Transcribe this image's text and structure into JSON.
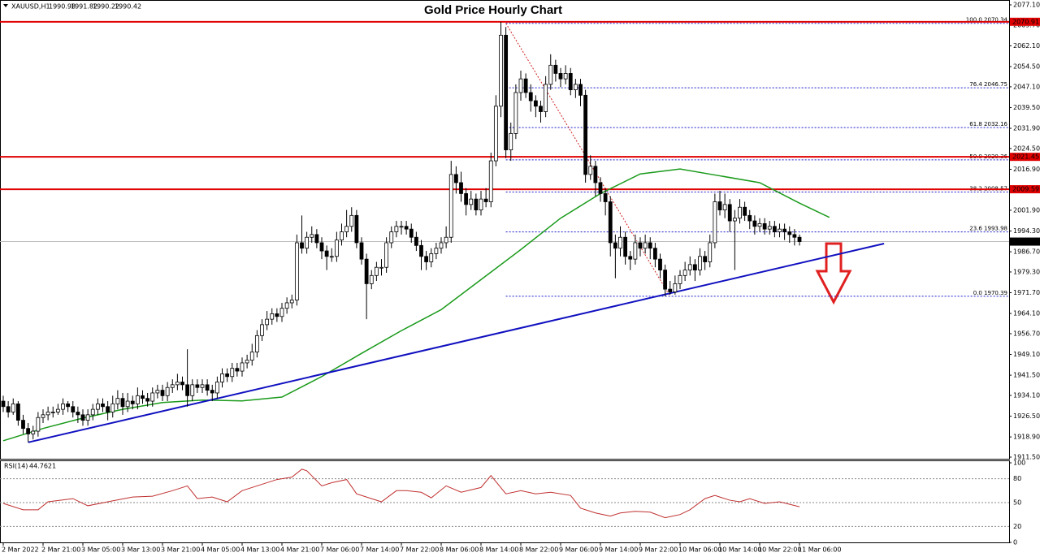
{
  "chart_data": [
    {
      "type": "candlestick",
      "title": "Gold Price Hourly Chart",
      "header": {
        "symbol": "XAUUSD,H1",
        "values": [
          1990.98,
          1991.82,
          1990.22,
          1990.42
        ]
      },
      "open": [
        1932,
        1930,
        1928,
        1931,
        1925,
        1922,
        1920,
        1921,
        1926,
        1927,
        1928,
        1928,
        1929,
        1931,
        1930,
        1928,
        1927,
        1925,
        1927,
        1929,
        1931,
        1930,
        1928,
        1931,
        1933,
        1930,
        1932,
        1931,
        1934,
        1933,
        1932,
        1935,
        1936,
        1934,
        1937,
        1938,
        1939,
        1938,
        1934,
        1938,
        1937,
        1938,
        1936,
        1935,
        1939,
        1942,
        1941,
        1944,
        1943,
        1946,
        1947,
        1950,
        1956,
        1960,
        1962,
        1964,
        1963,
        1966,
        1968,
        1969,
        1990,
        1988,
        1992,
        1993,
        1990,
        1987,
        1985,
        1985,
        1991,
        1994,
        1996,
        2000,
        1990,
        1984,
        1975,
        1978,
        1981,
        1981,
        1990,
        1994,
        1996,
        1996,
        1995,
        1992,
        1989,
        1985,
        1983,
        1986,
        1988,
        1990,
        1992,
        2015,
        2012,
        2008,
        2004,
        2006,
        2002,
        2006,
        2005,
        2020,
        2040,
        2066,
        2024,
        2030,
        2045,
        2050,
        2045,
        2042,
        2040,
        2038,
        2048,
        2055,
        2052,
        2050,
        2052,
        2046,
        2048,
        2044,
        2015,
        2018,
        2012,
        2008,
        2005,
        1990,
        1988,
        1992,
        1985,
        1984,
        1990,
        1988,
        1990,
        1988,
        1984,
        1980,
        1973,
        1972,
        1975,
        1978,
        1980,
        1982,
        1980,
        1985,
        1983,
        1990,
        2005,
        2002,
        2004,
        1998,
        1999,
        2003,
        2000,
        1998,
        1996,
        1997,
        1995,
        1996,
        1994,
        1995,
        1994,
        1993,
        1992
      ],
      "high": [
        1934,
        1932,
        1933,
        1932,
        1927,
        1924,
        1923,
        1928,
        1929,
        1930,
        1930,
        1931,
        1933,
        1932,
        1932,
        1930,
        1929,
        1929,
        1931,
        1933,
        1933,
        1932,
        1934,
        1936,
        1935,
        1935,
        1934,
        1937,
        1936,
        1935,
        1937,
        1938,
        1938,
        1939,
        1940,
        1942,
        1941,
        1951,
        1940,
        1940,
        1940,
        1940,
        1938,
        1941,
        1944,
        1944,
        1946,
        1946,
        1948,
        1949,
        1953,
        1958,
        1962,
        1965,
        1966,
        1966,
        1968,
        1970,
        1971,
        1993,
        2000,
        1994,
        1996,
        1995,
        1992,
        1989,
        1988,
        1994,
        1997,
        2002,
        2003,
        2002,
        1992,
        1986,
        1980,
        1983,
        1984,
        1992,
        1996,
        1998,
        1998,
        1998,
        1997,
        1994,
        1991,
        1987,
        1988,
        1990,
        1992,
        1996,
        2020,
        2018,
        2016,
        2010,
        2009,
        2008,
        2009,
        2010,
        2023,
        2044,
        2070.91,
        2069,
        2034,
        2048,
        2053,
        2052,
        2048,
        2044,
        2042,
        2051,
        2059,
        2057,
        2054,
        2055,
        2054,
        2050,
        2050,
        2046,
        2022,
        2020,
        2014,
        2010,
        2007,
        1993,
        1996,
        1994,
        1987,
        1993,
        1992,
        1993,
        1992,
        1990,
        1986,
        1982,
        1976,
        1978,
        1980,
        1983,
        1985,
        1984,
        1988,
        1987,
        1993,
        2008,
        2009,
        2008,
        2006,
        2002,
        2006,
        2005,
        2002,
        2000,
        1999,
        1999,
        1998,
        1998,
        1997,
        1997,
        1996,
        1995,
        1993
      ],
      "low": [
        1928,
        1926,
        1927,
        1923,
        1920,
        1917,
        1918,
        1919,
        1924,
        1925,
        1926,
        1927,
        1927,
        1928,
        1926,
        1924,
        1923,
        1923,
        1925,
        1927,
        1928,
        1925,
        1926,
        1929,
        1927,
        1928,
        1929,
        1929,
        1931,
        1930,
        1930,
        1933,
        1932,
        1932,
        1935,
        1936,
        1936,
        1930,
        1932,
        1935,
        1935,
        1934,
        1932,
        1933,
        1937,
        1939,
        1939,
        1941,
        1941,
        1944,
        1945,
        1948,
        1954,
        1958,
        1960,
        1961,
        1961,
        1964,
        1966,
        1967,
        1986,
        1986,
        1990,
        1988,
        1984,
        1980,
        1983,
        1983,
        1989,
        1992,
        1994,
        1988,
        1982,
        1962,
        1973,
        1976,
        1978,
        1979,
        1988,
        1992,
        1993,
        1993,
        1990,
        1987,
        1980,
        1980,
        1981,
        1984,
        1986,
        1988,
        1990,
        2008,
        2005,
        2000,
        2002,
        2000,
        2000,
        2003,
        2003,
        2018,
        2036,
        2021,
        2020,
        2028,
        2042,
        2043,
        2038,
        2036,
        2034,
        2036,
        2046,
        2049,
        2047,
        2048,
        2044,
        2043,
        2040,
        2012,
        2013,
        2007,
        2005,
        2000,
        1985,
        1977,
        1985,
        1982,
        1980,
        1982,
        1985,
        1986,
        1984,
        1981,
        1977,
        1970.39,
        1971,
        1971,
        1973,
        1976,
        1978,
        1976,
        1978,
        1980,
        1981,
        1988,
        2000,
        1999,
        1994,
        1980,
        1997,
        1998,
        1995,
        1993,
        1994,
        1993,
        1993,
        1992,
        1992,
        1991,
        1990,
        1989,
        1989
      ],
      "close": [
        1930,
        1928,
        1931,
        1925,
        1922,
        1920,
        1921,
        1926,
        1927,
        1928,
        1928,
        1929,
        1931,
        1930,
        1928,
        1927,
        1925,
        1927,
        1929,
        1931,
        1930,
        1928,
        1931,
        1933,
        1930,
        1932,
        1931,
        1934,
        1933,
        1932,
        1935,
        1936,
        1934,
        1937,
        1938,
        1939,
        1938,
        1934,
        1938,
        1937,
        1938,
        1936,
        1935,
        1939,
        1942,
        1941,
        1944,
        1943,
        1946,
        1947,
        1950,
        1956,
        1960,
        1962,
        1964,
        1963,
        1966,
        1968,
        1969,
        1990,
        1988,
        1992,
        1993,
        1990,
        1987,
        1985,
        1985,
        1991,
        1994,
        1996,
        2000,
        1990,
        1984,
        1975,
        1978,
        1981,
        1981,
        1990,
        1994,
        1996,
        1996,
        1995,
        1992,
        1989,
        1985,
        1983,
        1986,
        1988,
        1990,
        1992,
        2015,
        2012,
        2008,
        2004,
        2006,
        2002,
        2006,
        2005,
        2020,
        2040,
        2066,
        2024,
        2030,
        2045,
        2050,
        2045,
        2042,
        2040,
        2038,
        2048,
        2055,
        2052,
        2050,
        2052,
        2046,
        2048,
        2044,
        2015,
        2018,
        2012,
        2008,
        2005,
        1990,
        1988,
        1992,
        1985,
        1984,
        1990,
        1988,
        1990,
        1988,
        1984,
        1980,
        1973,
        1972,
        1975,
        1978,
        1980,
        1982,
        1980,
        1985,
        1983,
        1990,
        2005,
        2002,
        2004,
        1998,
        1999,
        2003,
        2000,
        1998,
        1996,
        1997,
        1995,
        1996,
        1994,
        1995,
        1994,
        1993,
        1992,
        1990.42
      ],
      "moving_average": {
        "color": "#1a9a1a",
        "x": [
          0,
          8,
          16,
          24,
          32,
          40,
          48,
          56,
          64,
          72,
          80,
          88,
          96,
          104,
          112,
          120,
          128,
          136,
          144,
          152,
          160,
          166
        ],
        "values": [
          1917.5,
          1922,
          1925.8,
          1929,
          1931.5,
          1932.4,
          1932.1,
          1933.5,
          1941,
          1949.5,
          1957.8,
          1965.5,
          1976.5,
          1987.5,
          1999,
          2008,
          2015.2,
          2017,
          2014.5,
          2012,
          2004.5,
          1999.3
        ]
      },
      "trendline": {
        "color": "#1010c0",
        "x": [
          5,
          177
        ],
        "values": [
          1916.9,
          1989.7
        ]
      },
      "resistance_levels": [
        2070.91,
        2021.45,
        2009.59
      ],
      "resistance_color": "#e00000",
      "last_price": 1990.42,
      "fib_anchor_x": [
        101,
        134
      ],
      "fib_levels": [
        {
          "value": 2070.34,
          "label": "100.0 2070.34"
        },
        {
          "value": 2046.75,
          "label": "76.4 2046.75"
        },
        {
          "value": 2032.16,
          "label": "61.8 2032.16"
        },
        {
          "value": 2020.36,
          "label": "50.0 2020.36"
        },
        {
          "value": 2008.57,
          "label": "38.2 2008.57"
        },
        {
          "value": 1993.98,
          "label": "23.6 1993.98"
        },
        {
          "value": 1970.39,
          "label": "0.0 1970.39"
        }
      ],
      "ylim": [
        1911.5,
        2077.1
      ],
      "yticks": [
        {
          "value": 2077.1,
          "label": "2077.10"
        },
        {
          "value": 2069.7,
          "label": "2069.70"
        },
        {
          "value": 2062.1,
          "label": "2062.10"
        },
        {
          "value": 2054.5,
          "label": "2054.50"
        },
        {
          "value": 2047.1,
          "label": "2047.10"
        },
        {
          "value": 2039.5,
          "label": "2039.50"
        },
        {
          "value": 2031.9,
          "label": "2031.90"
        },
        {
          "value": 2024.5,
          "label": "2024.50"
        },
        {
          "value": 2016.9,
          "label": "2016.90"
        },
        {
          "value": 2009.3,
          "label": "2009.30"
        },
        {
          "value": 2001.9,
          "label": "2001.90"
        },
        {
          "value": 1994.3,
          "label": "1994.30"
        },
        {
          "value": 1986.7,
          "label": "1986.70"
        },
        {
          "value": 1979.3,
          "label": "1979.30"
        },
        {
          "value": 1971.7,
          "label": "1971.70"
        },
        {
          "value": 1964.1,
          "label": "1964.10"
        },
        {
          "value": 1956.7,
          "label": "1956.70"
        },
        {
          "value": 1949.1,
          "label": "1949.10"
        },
        {
          "value": 1941.5,
          "label": "1941.50"
        },
        {
          "value": 1934.1,
          "label": "1934.10"
        },
        {
          "value": 1926.5,
          "label": "1926.50"
        },
        {
          "value": 1918.9,
          "label": "1918.90"
        },
        {
          "value": 1911.5,
          "label": "1911.50"
        }
      ],
      "xticks": [
        {
          "value": 0,
          "label": "2 Mar 2022"
        },
        {
          "value": 8,
          "label": "2 Mar 21:00"
        },
        {
          "value": 16,
          "label": "3 Mar 05:00"
        },
        {
          "value": 24,
          "label": "3 Mar 13:00"
        },
        {
          "value": 32,
          "label": "3 Mar 21:00"
        },
        {
          "value": 40,
          "label": "4 Mar 05:00"
        },
        {
          "value": 48,
          "label": "4 Mar 13:00"
        },
        {
          "value": 56,
          "label": "4 Mar 21:00"
        },
        {
          "value": 64,
          "label": "7 Mar 06:00"
        },
        {
          "value": 72,
          "label": "7 Mar 14:00"
        },
        {
          "value": 80,
          "label": "7 Mar 22:00"
        },
        {
          "value": 88,
          "label": "8 Mar 06:00"
        },
        {
          "value": 96,
          "label": "8 Mar 14:00"
        },
        {
          "value": 104,
          "label": "8 Mar 22:00"
        },
        {
          "value": 112,
          "label": "9 Mar 06:00"
        },
        {
          "value": 120,
          "label": "9 Mar 14:00"
        },
        {
          "value": 128,
          "label": "9 Mar 22:00"
        },
        {
          "value": 136,
          "label": "10 Mar 06:00"
        },
        {
          "value": 144,
          "label": "10 Mar 14:00"
        },
        {
          "value": 152,
          "label": "10 Mar 22:00"
        },
        {
          "value": 160,
          "label": "11 Mar 06:00"
        }
      ]
    },
    {
      "type": "line",
      "title": "RSI(14)",
      "value": 44.7621,
      "color": "#c03030",
      "x": [
        0,
        4,
        7,
        9,
        14,
        17,
        21,
        26,
        30,
        34,
        37,
        39,
        42,
        45,
        48,
        52,
        55,
        58,
        60,
        61,
        64,
        66,
        69,
        71,
        74,
        76,
        79,
        81,
        84,
        86,
        89,
        92,
        96,
        98,
        101,
        104,
        107,
        110,
        114,
        116,
        119,
        122,
        124,
        127,
        130,
        133,
        136,
        138,
        141,
        143,
        146,
        148,
        150,
        153,
        156,
        160
      ],
      "values": [
        49,
        41,
        41,
        51,
        55,
        46,
        51,
        57,
        58,
        65,
        71,
        55,
        57,
        51,
        65,
        73,
        79,
        82,
        92,
        90,
        71,
        75,
        79,
        61,
        55,
        51,
        65,
        65,
        63,
        56,
        71,
        63,
        69,
        84,
        61,
        65,
        61,
        63,
        59,
        43,
        37,
        33,
        37,
        39,
        38,
        31,
        35,
        41,
        55,
        59,
        53,
        51,
        55,
        49,
        51,
        44.76
      ],
      "ylim": [
        0,
        100
      ],
      "yticks": [
        0,
        20,
        50,
        80,
        100
      ]
    }
  ]
}
